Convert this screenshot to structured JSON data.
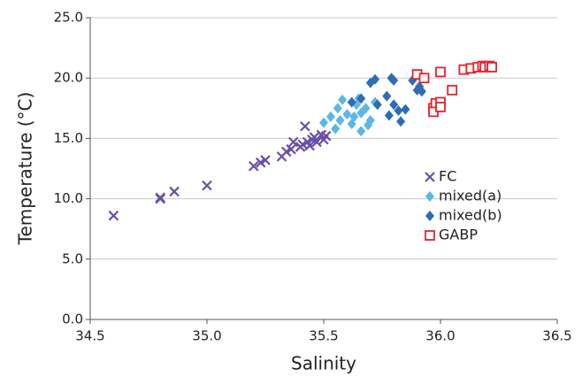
{
  "chart_data": {
    "type": "scatter",
    "x_label": "Salinity",
    "y_label": "Temperature (°C)",
    "xlim": [
      34.5,
      36.5
    ],
    "ylim": [
      0,
      25
    ],
    "xticks": [
      34.5,
      {
        "value": 35,
        "label": "35.0"
      },
      35.5,
      {
        "value": 36,
        "label": "36.0"
      },
      36.5
    ],
    "yticks": [
      {
        "value": 0,
        "label": "0.0"
      },
      {
        "value": 5,
        "label": "5.0"
      },
      {
        "value": 10,
        "label": "10.0"
      },
      {
        "value": 15,
        "label": "15.0"
      },
      {
        "value": 20,
        "label": "20.0"
      },
      {
        "value": 25,
        "label": "25.0"
      }
    ],
    "grid": true,
    "legend": "right",
    "series": [
      {
        "name": "FC",
        "color": "#6a4fa8",
        "marker": "x",
        "x": [
          34.6,
          34.8,
          34.8,
          34.86,
          35.0,
          35.2,
          35.23,
          35.25,
          35.32,
          35.34,
          35.36,
          35.37,
          35.41,
          35.42,
          35.43,
          35.45,
          35.46,
          35.47,
          35.49,
          35.5,
          35.51,
          35.44,
          35.4
        ],
        "values": [
          8.6,
          10.0,
          10.1,
          10.6,
          11.1,
          12.7,
          13.0,
          13.2,
          13.5,
          13.9,
          14.1,
          14.7,
          14.5,
          16.0,
          14.7,
          14.9,
          15.1,
          14.7,
          15.3,
          14.9,
          15.2,
          14.4,
          14.3
        ]
      },
      {
        "name": "mixed(a)",
        "color": "#5bb8e6",
        "marker": "diamond",
        "x": [
          35.5,
          35.53,
          35.56,
          35.58,
          35.6,
          35.62,
          35.64,
          35.65,
          35.66,
          35.68,
          35.7,
          35.72,
          35.55,
          35.57,
          35.63,
          35.69,
          35.66
        ],
        "values": [
          16.3,
          16.8,
          17.5,
          18.2,
          17.0,
          16.2,
          17.8,
          18.3,
          15.6,
          17.5,
          16.5,
          18.0,
          15.8,
          16.5,
          16.8,
          16.1,
          17.1
        ]
      },
      {
        "name": "mixed(b)",
        "color": "#2e6db4",
        "marker": "diamond",
        "x": [
          35.62,
          35.66,
          35.7,
          35.72,
          35.73,
          35.77,
          35.79,
          35.8,
          35.78,
          35.8,
          35.82,
          35.83,
          35.85,
          35.88,
          35.9,
          35.91,
          35.92
        ],
        "values": [
          18.0,
          18.3,
          19.6,
          19.9,
          17.8,
          18.5,
          20.0,
          19.8,
          16.9,
          17.8,
          17.3,
          16.4,
          17.4,
          19.8,
          19.0,
          19.3,
          18.9
        ]
      },
      {
        "name": "GABP",
        "color": "#e8212b",
        "marker": "square",
        "x": [
          35.9,
          35.93,
          35.97,
          35.98,
          35.97,
          36.0,
          36.0,
          36.05,
          36.1,
          36.13,
          36.16,
          36.18,
          36.19,
          36.21,
          36.22,
          36.0
        ],
        "values": [
          20.3,
          20.0,
          17.5,
          17.9,
          17.2,
          18.0,
          20.5,
          19.0,
          20.7,
          20.8,
          20.9,
          21.0,
          20.9,
          21.0,
          20.9,
          17.6
        ]
      }
    ]
  }
}
